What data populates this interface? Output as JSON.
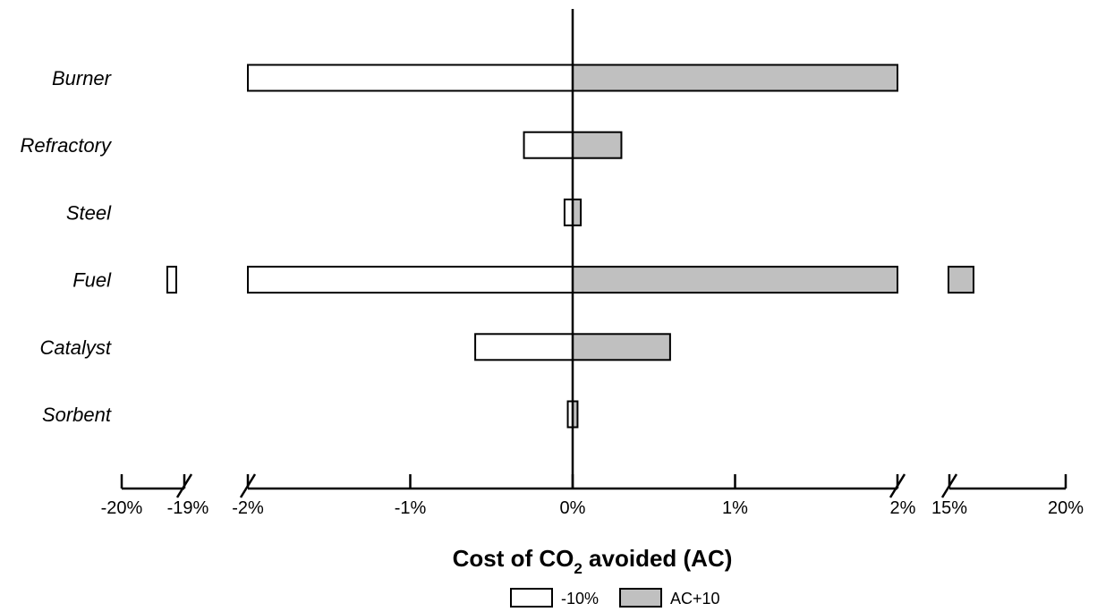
{
  "chart_data": {
    "type": "bar",
    "orientation": "horizontal",
    "categories": [
      "Burner",
      "Refractory",
      "Steel",
      "Fuel",
      "Catalyst",
      "Sorbent"
    ],
    "series": [
      {
        "name": "-10%",
        "color": "#ffffff",
        "values": [
          -2.0,
          -0.3,
          -0.05,
          -2.0,
          -0.6,
          -0.03
        ],
        "break_values": [
          null,
          null,
          null,
          -19.2,
          null,
          null
        ]
      },
      {
        "name": "AC+10",
        "color": "#c0c0c0",
        "values": [
          2.0,
          0.3,
          0.05,
          2.0,
          0.6,
          0.03
        ],
        "break_values": [
          null,
          null,
          null,
          15.5,
          null,
          null
        ]
      }
    ],
    "xlabel_prefix": "Cost of CO",
    "xlabel_sub": "2",
    "xlabel_suffix": " avoided (AC)",
    "axis_segments": [
      {
        "xlim": [
          -20,
          -19
        ],
        "ticks": [
          -20,
          -19
        ]
      },
      {
        "xlim": [
          -2,
          2
        ],
        "ticks": [
          -2,
          -1,
          0,
          1,
          2
        ]
      },
      {
        "xlim": [
          15,
          20
        ],
        "ticks": [
          15,
          20
        ]
      }
    ],
    "tick_labels": [
      "-20%",
      "-19%",
      "-2%",
      "-1%",
      "0%",
      "1%",
      "2%",
      "15%",
      "20%"
    ],
    "legend_position": "bottom-center",
    "grid": false
  }
}
